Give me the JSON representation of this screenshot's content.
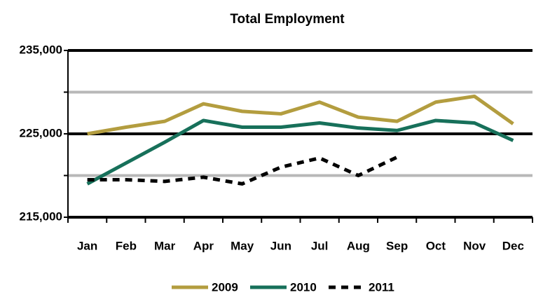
{
  "chart_data": {
    "type": "line",
    "title": "Total Employment",
    "categories": [
      "Jan",
      "Feb",
      "Mar",
      "Apr",
      "May",
      "Jun",
      "Jul",
      "Aug",
      "Sep",
      "Oct",
      "Nov",
      "Dec"
    ],
    "series": [
      {
        "name": "2009",
        "color": "#b39d3f",
        "dashed": false,
        "values": [
          225000,
          225800,
          226500,
          228600,
          227700,
          227400,
          228800,
          227000,
          226500,
          228800,
          229500,
          226200
        ]
      },
      {
        "name": "2010",
        "color": "#17705a",
        "dashed": false,
        "values": [
          219000,
          221500,
          224000,
          226600,
          225800,
          225800,
          226300,
          225700,
          225400,
          226600,
          226300,
          224200
        ]
      },
      {
        "name": "2011",
        "color": "#000000",
        "dashed": true,
        "values": [
          219500,
          219500,
          219300,
          219800,
          219000,
          221000,
          222100,
          220000,
          222200,
          null,
          null,
          null
        ]
      }
    ],
    "ylim": [
      215000,
      235000
    ],
    "yticks": [
      {
        "value": 215000,
        "label": "215,000"
      },
      {
        "value": 225000,
        "label": "225,000"
      },
      {
        "value": 235000,
        "label": "235,000"
      }
    ],
    "minor_yticks": [
      220000,
      230000
    ],
    "grid": true,
    "legend": "bottom"
  }
}
